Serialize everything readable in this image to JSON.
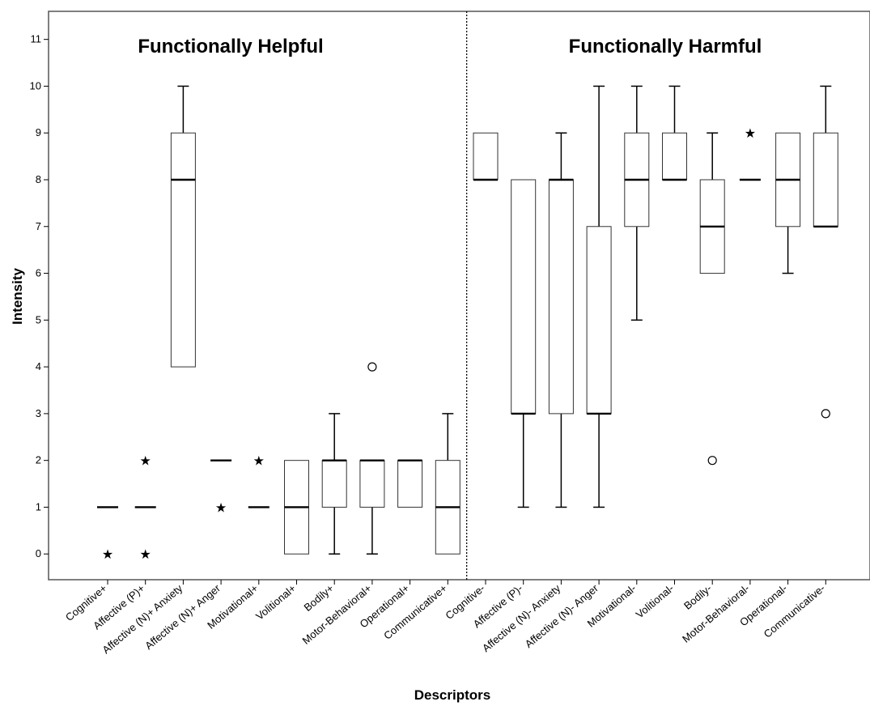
{
  "chart_data": {
    "type": "boxplot",
    "xlabel": "Descriptors",
    "ylabel": "Intensity",
    "ylim": [
      -0.55,
      11.6
    ],
    "yticks": [
      0,
      1,
      2,
      3,
      4,
      5,
      6,
      7,
      8,
      9,
      10,
      11
    ],
    "grid": false,
    "groups": [
      {
        "label": "Functionally Helpful",
        "categories": [
          "Cognitive+",
          "Affective (P)+",
          "Affective (N)+ Anxiety",
          "Affective (N)+ Anger",
          "Motivational+",
          "Volitional+",
          "Bodily+",
          "Motor-Behavioral+",
          "Operational+",
          "Communicative+"
        ]
      },
      {
        "label": "Functionally Harmful",
        "categories": [
          "Cognitive-",
          "Affective (P)-",
          "Affective (N)- Anxiety",
          "Affective (N)- Anger",
          "Motivational-",
          "Volitional-",
          "Bodily-",
          "Motor-Behavioral-",
          "Operational-",
          "Communicative-"
        ]
      }
    ],
    "boxes": [
      {
        "category": "Cognitive+",
        "min": 1,
        "q1": 1,
        "median": 1,
        "q3": 1,
        "max": 1,
        "outliers": [],
        "extremes": [
          0
        ]
      },
      {
        "category": "Affective (P)+",
        "min": 1,
        "q1": 1,
        "median": 1,
        "q3": 1,
        "max": 1,
        "outliers": [],
        "extremes": [
          2,
          0
        ]
      },
      {
        "category": "Affective (N)+ Anxiety",
        "min": 4,
        "q1": 4,
        "median": 8,
        "q3": 9,
        "max": 10,
        "outliers": [],
        "extremes": []
      },
      {
        "category": "Affective (N)+ Anger",
        "min": 2,
        "q1": 2,
        "median": 2,
        "q3": 2,
        "max": 2,
        "outliers": [],
        "extremes": [
          1
        ]
      },
      {
        "category": "Motivational+",
        "min": 1,
        "q1": 1,
        "median": 1,
        "q3": 1,
        "max": 1,
        "outliers": [],
        "extremes": [
          2
        ]
      },
      {
        "category": "Volitional+",
        "min": 0,
        "q1": 0,
        "median": 1,
        "q3": 2,
        "max": 2,
        "outliers": [],
        "extremes": []
      },
      {
        "category": "Bodily+",
        "min": 0,
        "q1": 1,
        "median": 2,
        "q3": 2,
        "max": 3,
        "outliers": [],
        "extremes": []
      },
      {
        "category": "Motor-Behavioral+",
        "min": 0,
        "q1": 1,
        "median": 2,
        "q3": 2,
        "max": 2,
        "outliers": [
          4
        ],
        "extremes": []
      },
      {
        "category": "Operational+",
        "min": 1,
        "q1": 1,
        "median": 2,
        "q3": 2,
        "max": 2,
        "outliers": [],
        "extremes": []
      },
      {
        "category": "Communicative+",
        "min": 0,
        "q1": 0,
        "median": 1,
        "q3": 2,
        "max": 3,
        "outliers": [],
        "extremes": []
      },
      {
        "category": "Cognitive-",
        "min": 8,
        "q1": 8,
        "median": 8,
        "q3": 9,
        "max": 9,
        "outliers": [],
        "extremes": []
      },
      {
        "category": "Affective (P)-",
        "min": 1,
        "q1": 3,
        "median": 3,
        "q3": 8,
        "max": 8,
        "outliers": [],
        "extremes": []
      },
      {
        "category": "Affective (N)- Anxiety",
        "min": 1,
        "q1": 3,
        "median": 8,
        "q3": 8,
        "max": 9,
        "outliers": [],
        "extremes": []
      },
      {
        "category": "Affective (N)- Anger",
        "min": 1,
        "q1": 3,
        "median": 3,
        "q3": 7,
        "max": 10,
        "outliers": [],
        "extremes": []
      },
      {
        "category": "Motivational-",
        "min": 5,
        "q1": 7,
        "median": 8,
        "q3": 9,
        "max": 10,
        "outliers": [],
        "extremes": []
      },
      {
        "category": "Volitional-",
        "min": 8,
        "q1": 8,
        "median": 8,
        "q3": 9,
        "max": 10,
        "outliers": [],
        "extremes": []
      },
      {
        "category": "Bodily-",
        "min": 6,
        "q1": 6,
        "median": 7,
        "q3": 8,
        "max": 9,
        "outliers": [
          2
        ],
        "extremes": []
      },
      {
        "category": "Motor-Behavioral-",
        "min": 8,
        "q1": 8,
        "median": 8,
        "q3": 8,
        "max": 8,
        "outliers": [],
        "extremes": [
          9
        ]
      },
      {
        "category": "Operational-",
        "min": 6,
        "q1": 7,
        "median": 8,
        "q3": 9,
        "max": 9,
        "outliers": [],
        "extremes": []
      },
      {
        "category": "Communicative-",
        "min": 7,
        "q1": 7,
        "median": 7,
        "q3": 9,
        "max": 10,
        "outliers": [
          3
        ],
        "extremes": []
      }
    ]
  }
}
